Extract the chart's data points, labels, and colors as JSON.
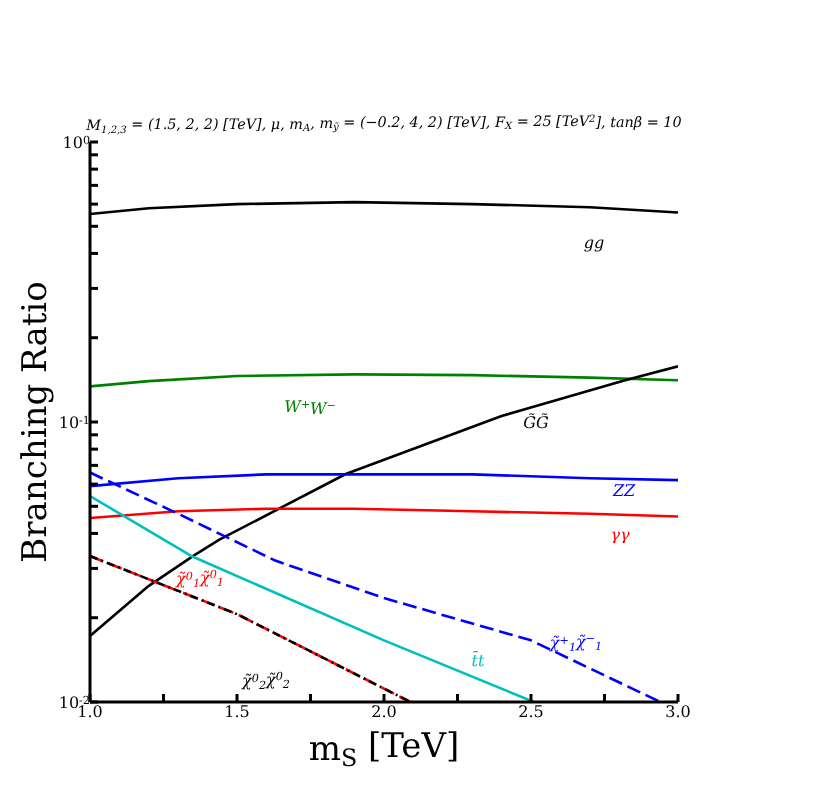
{
  "chart_data": {
    "type": "line",
    "title": "M$_{1,2,3}$ = (1.5, 2, 2) [TeV], μ, m$_{A}$, m$_{ỹ}$ = (−0.2, 4, 2) [TeV], F$_{X}$ = 25 [TeV$^{2}$], tanβ = 10",
    "xlabel": "m$_{S}$ [TeV]",
    "ylabel": "Branching Ratio",
    "log": "y",
    "grid": false,
    "marker": "none",
    "xlim": [
      1,
      3
    ],
    "xticks": [
      {
        "value": 1,
        "label": "1.0"
      },
      {
        "value": 1.25,
        "label": null
      },
      {
        "value": 1.5,
        "label": "1.5"
      },
      {
        "value": 1.75,
        "label": null
      },
      {
        "value": 2,
        "label": "2.0"
      },
      {
        "value": 2.25,
        "label": null
      },
      {
        "value": 2.5,
        "label": "2.5"
      },
      {
        "value": 2.75,
        "label": null
      },
      {
        "value": 3,
        "label": "3.0"
      }
    ],
    "ylim": [
      0.01,
      1
    ],
    "yticks": [
      {
        "value": 0.01,
        "label": "10$^{-2}$"
      },
      {
        "value": 0.02,
        "label": null
      },
      {
        "value": 0.03,
        "label": null
      },
      {
        "value": 0.04,
        "label": null
      },
      {
        "value": 0.05,
        "label": null
      },
      {
        "value": 0.06,
        "label": null
      },
      {
        "value": 0.07,
        "label": null
      },
      {
        "value": 0.08,
        "label": null
      },
      {
        "value": 0.09,
        "label": null
      },
      {
        "value": 0.1,
        "label": "10$^{-1}$"
      },
      {
        "value": 0.2,
        "label": null
      },
      {
        "value": 0.3,
        "label": null
      },
      {
        "value": 0.4,
        "label": null
      },
      {
        "value": 0.5,
        "label": null
      },
      {
        "value": 0.6,
        "label": null
      },
      {
        "value": 0.7,
        "label": null
      },
      {
        "value": 0.8,
        "label": null
      },
      {
        "value": 0.9,
        "label": null
      },
      {
        "value": 1,
        "label": "10$^{0}$"
      }
    ],
    "series": [
      {
        "name": "gg",
        "color": "#000000",
        "line_style": "solid",
        "x": [
          1,
          1.2,
          1.5,
          1.9,
          2.3,
          2.7,
          3
        ],
        "values": [
          0.553,
          0.58,
          0.6,
          0.61,
          0.6,
          0.585,
          0.56
        ]
      },
      {
        "name": "W$^{+}$W$^{−}$",
        "color": "#008000",
        "line_style": "solid",
        "x": [
          1,
          1.2,
          1.5,
          1.9,
          2.3,
          2.7,
          3
        ],
        "values": [
          0.134,
          0.14,
          0.146,
          0.148,
          0.147,
          0.144,
          0.141
        ]
      },
      {
        "name": "G̃G̃",
        "color": "#000000",
        "line_style": "solid",
        "x": [
          1,
          1.2,
          1.35,
          1.44,
          1.87,
          2.4,
          2.82,
          3
        ],
        "values": [
          0.0172,
          0.026,
          0.0332,
          0.038,
          0.0652,
          0.105,
          0.141,
          0.158
        ]
      },
      {
        "name": "ZZ",
        "color": "#0000ff",
        "line_style": "solid",
        "x": [
          1,
          1.3,
          1.6,
          1.9,
          2.3,
          2.7,
          3
        ],
        "values": [
          0.059,
          0.063,
          0.065,
          0.065,
          0.065,
          0.063,
          0.062
        ]
      },
      {
        "name": "γγ",
        "color": "#ff0000",
        "line_style": "solid",
        "x": [
          1,
          1.3,
          1.6,
          1.9,
          2.3,
          2.7,
          3
        ],
        "values": [
          0.0454,
          0.048,
          0.049,
          0.049,
          0.048,
          0.047,
          0.046
        ]
      },
      {
        "name": "χ̃$^{+}$$_{1}$χ̃$^{−}$$_{1}$",
        "color": "#0000ff",
        "line_style": "dashed",
        "x": [
          1,
          1.3,
          1.63,
          2,
          2.5,
          2.94
        ],
        "values": [
          0.066,
          0.047,
          0.032,
          0.0235,
          0.0166,
          0.01
        ]
      },
      {
        "name": "t̄t",
        "color": "#00bfbf",
        "line_style": "solid",
        "x": [
          1,
          1.35,
          2,
          2.51
        ],
        "values": [
          0.0544,
          0.033,
          0.0166,
          0.01
        ]
      },
      {
        "name": "χ̃$^{0}$$_{1}$χ̃$^{0}$$_{1}$",
        "color": "#ff0000",
        "line_style": "dashed",
        "x": [
          1,
          1.5,
          2.09
        ],
        "values": [
          0.0332,
          0.0206,
          0.01
        ]
      },
      {
        "name": "χ̃$^{0}$$_{2}$χ̃$^{0}$$_{2}$",
        "color": "#000000",
        "line_style": "dotted",
        "x": [
          1,
          1.5,
          2.09
        ],
        "values": [
          0.0332,
          0.0206,
          0.01
        ]
      }
    ]
  }
}
